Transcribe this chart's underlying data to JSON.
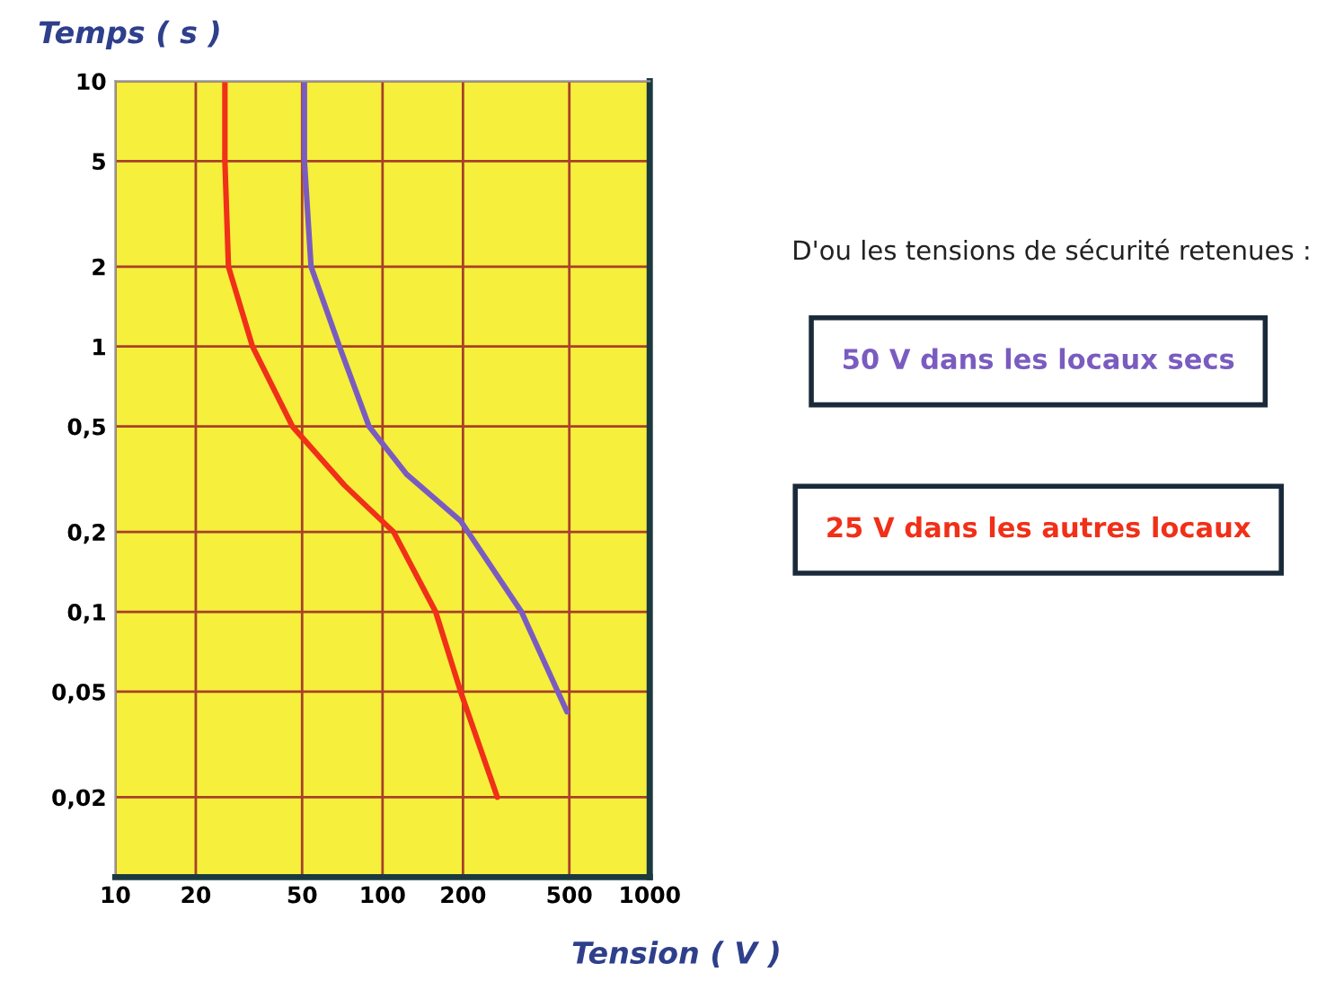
{
  "chart_data": {
    "type": "line",
    "xlabel": "Tension ( V )",
    "ylabel": "Temps ( s )",
    "log": "xy",
    "xlim": [
      10,
      1000
    ],
    "ylim": [
      0.01,
      10
    ],
    "xticks": [
      10,
      20,
      50,
      100,
      200,
      500,
      1000
    ],
    "yticks": [
      {
        "value": 0.02,
        "label": "0,02"
      },
      {
        "value": 0.05,
        "label": "0,05"
      },
      {
        "value": 0.1,
        "label": "0,1"
      },
      {
        "value": 0.2,
        "label": "0,2"
      },
      {
        "value": 0.5,
        "label": "0,5"
      },
      1,
      2,
      5,
      10
    ],
    "grid": true,
    "marker": "none",
    "line_style": "solid",
    "series": [
      {
        "color": "#7a5cc0",
        "x": [
          51,
          51,
          54,
          69,
          89,
          123,
          196,
          331,
          490
        ],
        "values": [
          10,
          5,
          2,
          1,
          0.5,
          0.33,
          0.22,
          0.1,
          0.042
        ]
      },
      {
        "color": "#f03018",
        "x": [
          25.7,
          25.7,
          26.5,
          32.6,
          46,
          72,
          110,
          158,
          196,
          269
        ],
        "values": [
          10,
          5,
          2,
          1,
          0.5,
          0.3,
          0.2,
          0.1,
          0.05,
          0.02
        ]
      }
    ],
    "annotations": [
      "D'ou les tensions de sécurité retenues :",
      "50 V dans les locaux secs",
      "25 V dans les autres locaux"
    ]
  }
}
